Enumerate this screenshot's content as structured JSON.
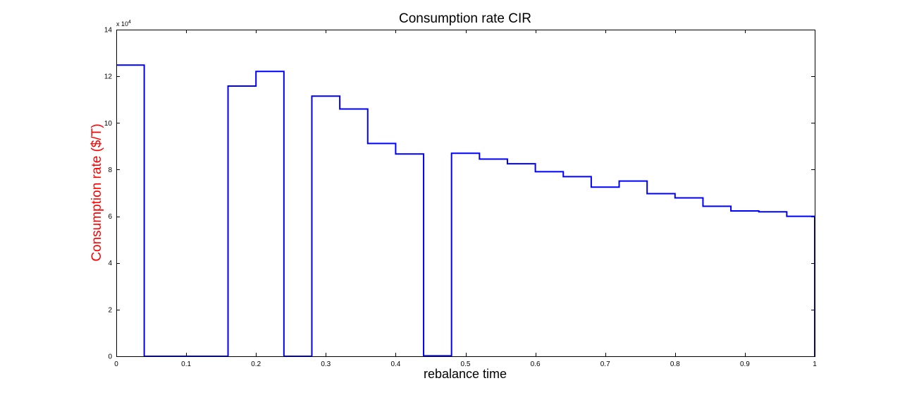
{
  "chart_data": {
    "type": "line",
    "title": "Consumption rate CIR",
    "xlabel": "rebalance time",
    "ylabel": "Consumption rate ($/T)",
    "ylabel_color": "#ff0000",
    "line_color": "#0000ff",
    "xlim": [
      0,
      1
    ],
    "ylim": [
      0,
      140000
    ],
    "y_exponent_label": "x 10",
    "y_exponent_power": "4",
    "grid": false,
    "step": "post",
    "xticks": [
      0,
      0.1,
      0.2,
      0.3,
      0.4,
      0.5,
      0.6,
      0.7,
      0.8,
      0.9,
      1
    ],
    "xtick_labels": [
      "0",
      "0.1",
      "0.2",
      "0.3",
      "0.4",
      "0.5",
      "0.6",
      "0.7",
      "0.8",
      "0.9",
      "1"
    ],
    "yticks": [
      0,
      20000,
      40000,
      60000,
      80000,
      100000,
      120000,
      140000
    ],
    "ytick_labels": [
      "0",
      "2",
      "4",
      "6",
      "8",
      "10",
      "12",
      "14"
    ],
    "series": [
      {
        "x": [
          0,
          0.04,
          0.08,
          0.12,
          0.16,
          0.2,
          0.24,
          0.28,
          0.32,
          0.36,
          0.4,
          0.44,
          0.48,
          0.52,
          0.56,
          0.6,
          0.64,
          0.68,
          0.72,
          0.76,
          0.8,
          0.84,
          0.88,
          0.92,
          0.96,
          1.0
        ],
        "y": [
          124800,
          0,
          0,
          0,
          115800,
          122100,
          0,
          111500,
          106000,
          91200,
          86700,
          200,
          87000,
          84500,
          82500,
          79100,
          77000,
          72500,
          75100,
          69700,
          67900,
          64300,
          62300,
          61900,
          60000,
          0
        ]
      }
    ]
  }
}
